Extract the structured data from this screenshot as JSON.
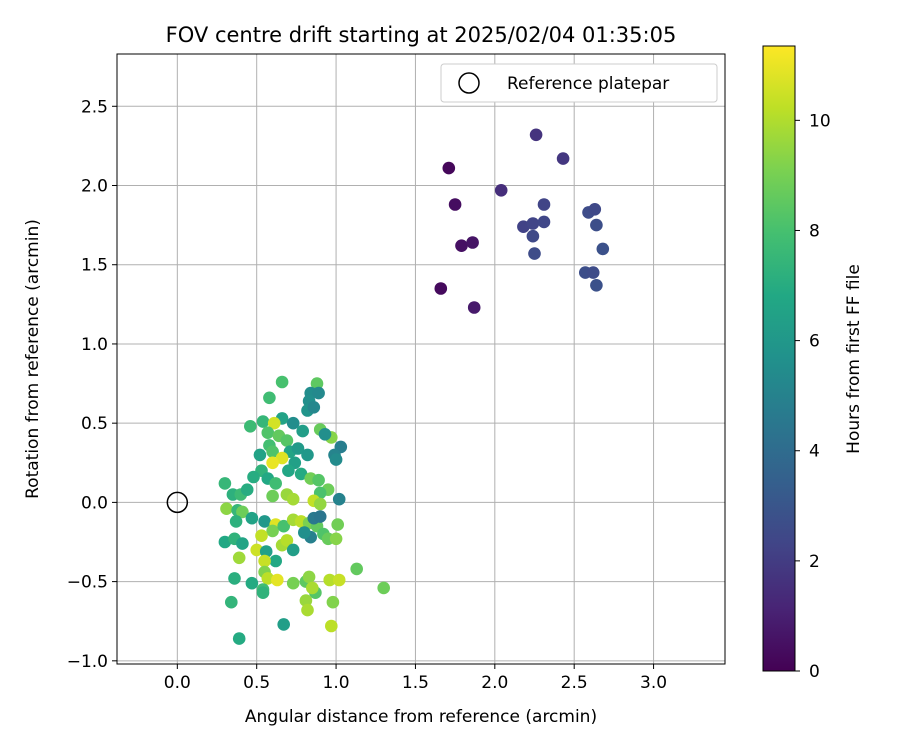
{
  "chart_data": {
    "type": "scatter",
    "title": "FOV centre drift starting at 2025/02/04 01:35:05",
    "xlabel": "Angular distance from reference (arcmin)",
    "ylabel": "Rotation from reference (arcmin)",
    "xlim": [
      -0.38,
      3.45
    ],
    "ylim": [
      -1.02,
      2.83
    ],
    "xticks": [
      "0.0",
      "0.5",
      "1.0",
      "1.5",
      "2.0",
      "2.5",
      "3.0"
    ],
    "yticks": [
      "−1.0",
      "−0.5",
      "0.0",
      "0.5",
      "1.0",
      "1.5",
      "2.0",
      "2.5"
    ],
    "grid": true,
    "legend": {
      "location": "top-right",
      "label": "Reference platepar"
    },
    "reference": {
      "x": 0.0,
      "y": 0.0
    },
    "colorbar": {
      "label": "Hours from first FF file",
      "colormap": "viridis",
      "range": [
        0,
        11.35
      ],
      "ticks": [
        "0",
        "2",
        "4",
        "6",
        "8",
        "10"
      ]
    },
    "points": [
      {
        "x": 1.71,
        "y": 2.11,
        "h": 0.2
      },
      {
        "x": 1.75,
        "y": 1.88,
        "h": 0.4
      },
      {
        "x": 1.79,
        "y": 1.62,
        "h": 0.5
      },
      {
        "x": 1.86,
        "y": 1.64,
        "h": 0.6
      },
      {
        "x": 1.66,
        "y": 1.35,
        "h": 0.3
      },
      {
        "x": 1.87,
        "y": 1.23,
        "h": 0.8
      },
      {
        "x": 2.04,
        "y": 1.97,
        "h": 1.5
      },
      {
        "x": 2.26,
        "y": 2.32,
        "h": 1.7
      },
      {
        "x": 2.43,
        "y": 2.17,
        "h": 1.8
      },
      {
        "x": 2.31,
        "y": 1.88,
        "h": 2.3
      },
      {
        "x": 2.18,
        "y": 1.74,
        "h": 2.2
      },
      {
        "x": 2.24,
        "y": 1.76,
        "h": 2.3
      },
      {
        "x": 2.31,
        "y": 1.77,
        "h": 2.4
      },
      {
        "x": 2.24,
        "y": 1.68,
        "h": 2.5
      },
      {
        "x": 2.25,
        "y": 1.57,
        "h": 2.6
      },
      {
        "x": 2.59,
        "y": 1.83,
        "h": 2.6
      },
      {
        "x": 2.63,
        "y": 1.85,
        "h": 2.5
      },
      {
        "x": 2.64,
        "y": 1.75,
        "h": 2.7
      },
      {
        "x": 2.68,
        "y": 1.6,
        "h": 2.8
      },
      {
        "x": 2.57,
        "y": 1.45,
        "h": 2.7
      },
      {
        "x": 2.62,
        "y": 1.45,
        "h": 2.6
      },
      {
        "x": 2.64,
        "y": 1.37,
        "h": 2.8
      },
      {
        "x": 0.66,
        "y": 0.76,
        "h": 8.0
      },
      {
        "x": 0.88,
        "y": 0.75,
        "h": 8.5
      },
      {
        "x": 0.58,
        "y": 0.66,
        "h": 7.8
      },
      {
        "x": 0.84,
        "y": 0.69,
        "h": 5.5
      },
      {
        "x": 0.89,
        "y": 0.69,
        "h": 5.3
      },
      {
        "x": 0.83,
        "y": 0.64,
        "h": 5.6
      },
      {
        "x": 0.82,
        "y": 0.58,
        "h": 5.8
      },
      {
        "x": 0.86,
        "y": 0.6,
        "h": 5.2
      },
      {
        "x": 0.66,
        "y": 0.53,
        "h": 6.5
      },
      {
        "x": 0.73,
        "y": 0.5,
        "h": 5.5
      },
      {
        "x": 0.79,
        "y": 0.45,
        "h": 6.3
      },
      {
        "x": 0.54,
        "y": 0.51,
        "h": 7.5
      },
      {
        "x": 0.46,
        "y": 0.48,
        "h": 7.7
      },
      {
        "x": 0.61,
        "y": 0.5,
        "h": 10.6
      },
      {
        "x": 0.57,
        "y": 0.44,
        "h": 8.2
      },
      {
        "x": 0.64,
        "y": 0.42,
        "h": 8.6
      },
      {
        "x": 0.69,
        "y": 0.39,
        "h": 8.3
      },
      {
        "x": 0.9,
        "y": 0.46,
        "h": 8.7
      },
      {
        "x": 0.97,
        "y": 0.41,
        "h": 9.3
      },
      {
        "x": 0.93,
        "y": 0.43,
        "h": 5.6
      },
      {
        "x": 1.03,
        "y": 0.35,
        "h": 4.8
      },
      {
        "x": 0.99,
        "y": 0.3,
        "h": 5.1
      },
      {
        "x": 1.0,
        "y": 0.27,
        "h": 5.4
      },
      {
        "x": 0.58,
        "y": 0.36,
        "h": 7.9
      },
      {
        "x": 0.6,
        "y": 0.32,
        "h": 8.2
      },
      {
        "x": 0.52,
        "y": 0.3,
        "h": 6.5
      },
      {
        "x": 0.71,
        "y": 0.32,
        "h": 6.6
      },
      {
        "x": 0.76,
        "y": 0.34,
        "h": 6.1
      },
      {
        "x": 0.82,
        "y": 0.3,
        "h": 6.0
      },
      {
        "x": 0.74,
        "y": 0.25,
        "h": 6.4
      },
      {
        "x": 0.66,
        "y": 0.28,
        "h": 10.8
      },
      {
        "x": 0.6,
        "y": 0.25,
        "h": 11.0
      },
      {
        "x": 0.53,
        "y": 0.2,
        "h": 7.3
      },
      {
        "x": 0.48,
        "y": 0.16,
        "h": 7.0
      },
      {
        "x": 0.57,
        "y": 0.15,
        "h": 6.8
      },
      {
        "x": 0.62,
        "y": 0.12,
        "h": 7.8
      },
      {
        "x": 0.7,
        "y": 0.2,
        "h": 6.7
      },
      {
        "x": 0.78,
        "y": 0.18,
        "h": 6.9
      },
      {
        "x": 0.84,
        "y": 0.15,
        "h": 8.9
      },
      {
        "x": 0.89,
        "y": 0.14,
        "h": 8.3
      },
      {
        "x": 0.95,
        "y": 0.08,
        "h": 8.8
      },
      {
        "x": 0.9,
        "y": 0.06,
        "h": 8.1
      },
      {
        "x": 0.3,
        "y": 0.12,
        "h": 7.5
      },
      {
        "x": 0.35,
        "y": 0.05,
        "h": 7.2
      },
      {
        "x": 0.4,
        "y": 0.05,
        "h": 7.7
      },
      {
        "x": 0.44,
        "y": 0.08,
        "h": 7.0
      },
      {
        "x": 0.6,
        "y": 0.04,
        "h": 8.8
      },
      {
        "x": 0.69,
        "y": 0.05,
        "h": 9.6
      },
      {
        "x": 0.73,
        "y": 0.02,
        "h": 9.8
      },
      {
        "x": 0.86,
        "y": 0.01,
        "h": 10.3
      },
      {
        "x": 0.9,
        "y": -0.01,
        "h": 9.5
      },
      {
        "x": 1.02,
        "y": 0.02,
        "h": 5.0
      },
      {
        "x": 0.31,
        "y": -0.04,
        "h": 9.4
      },
      {
        "x": 0.38,
        "y": -0.05,
        "h": 7.5
      },
      {
        "x": 0.41,
        "y": -0.06,
        "h": 8.8
      },
      {
        "x": 0.47,
        "y": -0.1,
        "h": 6.5
      },
      {
        "x": 0.37,
        "y": -0.12,
        "h": 7.2
      },
      {
        "x": 0.55,
        "y": -0.12,
        "h": 6.0
      },
      {
        "x": 0.62,
        "y": -0.14,
        "h": 10.8
      },
      {
        "x": 0.6,
        "y": -0.18,
        "h": 9.0
      },
      {
        "x": 0.67,
        "y": -0.15,
        "h": 8.0
      },
      {
        "x": 0.73,
        "y": -0.11,
        "h": 9.8
      },
      {
        "x": 0.78,
        "y": -0.12,
        "h": 10.2
      },
      {
        "x": 0.83,
        "y": -0.13,
        "h": 9.1
      },
      {
        "x": 0.88,
        "y": -0.15,
        "h": 8.6
      },
      {
        "x": 0.86,
        "y": -0.1,
        "h": 4.6
      },
      {
        "x": 0.9,
        "y": -0.09,
        "h": 4.4
      },
      {
        "x": 0.92,
        "y": -0.2,
        "h": 8.2
      },
      {
        "x": 1.01,
        "y": -0.14,
        "h": 8.9
      },
      {
        "x": 0.95,
        "y": -0.23,
        "h": 8.7
      },
      {
        "x": 1.0,
        "y": -0.23,
        "h": 9.3
      },
      {
        "x": 0.84,
        "y": -0.22,
        "h": 4.9
      },
      {
        "x": 0.8,
        "y": -0.19,
        "h": 5.6
      },
      {
        "x": 0.3,
        "y": -0.25,
        "h": 6.8
      },
      {
        "x": 0.36,
        "y": -0.23,
        "h": 7.3
      },
      {
        "x": 0.41,
        "y": -0.26,
        "h": 6.6
      },
      {
        "x": 0.53,
        "y": -0.21,
        "h": 10.3
      },
      {
        "x": 0.5,
        "y": -0.3,
        "h": 10.5
      },
      {
        "x": 0.39,
        "y": -0.35,
        "h": 9.7
      },
      {
        "x": 0.56,
        "y": -0.31,
        "h": 6.4
      },
      {
        "x": 0.66,
        "y": -0.27,
        "h": 9.8
      },
      {
        "x": 0.69,
        "y": -0.24,
        "h": 10.1
      },
      {
        "x": 0.73,
        "y": -0.3,
        "h": 6.3
      },
      {
        "x": 0.62,
        "y": -0.37,
        "h": 6.8
      },
      {
        "x": 0.55,
        "y": -0.37,
        "h": 10.4
      },
      {
        "x": 0.36,
        "y": -0.48,
        "h": 7.1
      },
      {
        "x": 0.55,
        "y": -0.44,
        "h": 9.2
      },
      {
        "x": 0.57,
        "y": -0.48,
        "h": 10.2
      },
      {
        "x": 0.63,
        "y": -0.49,
        "h": 10.9
      },
      {
        "x": 0.73,
        "y": -0.51,
        "h": 9.0
      },
      {
        "x": 0.81,
        "y": -0.5,
        "h": 8.5
      },
      {
        "x": 0.83,
        "y": -0.47,
        "h": 9.4
      },
      {
        "x": 0.87,
        "y": -0.57,
        "h": 8.3
      },
      {
        "x": 0.96,
        "y": -0.49,
        "h": 10.1
      },
      {
        "x": 1.02,
        "y": -0.49,
        "h": 10.4
      },
      {
        "x": 0.85,
        "y": -0.54,
        "h": 9.9
      },
      {
        "x": 0.47,
        "y": -0.51,
        "h": 6.9
      },
      {
        "x": 0.54,
        "y": -0.55,
        "h": 7.8
      },
      {
        "x": 0.54,
        "y": -0.57,
        "h": 7.3
      },
      {
        "x": 0.34,
        "y": -0.63,
        "h": 7.4
      },
      {
        "x": 0.81,
        "y": -0.62,
        "h": 9.6
      },
      {
        "x": 0.82,
        "y": -0.68,
        "h": 9.9
      },
      {
        "x": 0.98,
        "y": -0.63,
        "h": 9.2
      },
      {
        "x": 1.13,
        "y": -0.42,
        "h": 8.6
      },
      {
        "x": 1.3,
        "y": -0.54,
        "h": 8.8
      },
      {
        "x": 0.67,
        "y": -0.77,
        "h": 6.3
      },
      {
        "x": 0.97,
        "y": -0.78,
        "h": 10.2
      },
      {
        "x": 0.39,
        "y": -0.86,
        "h": 6.9
      }
    ]
  }
}
